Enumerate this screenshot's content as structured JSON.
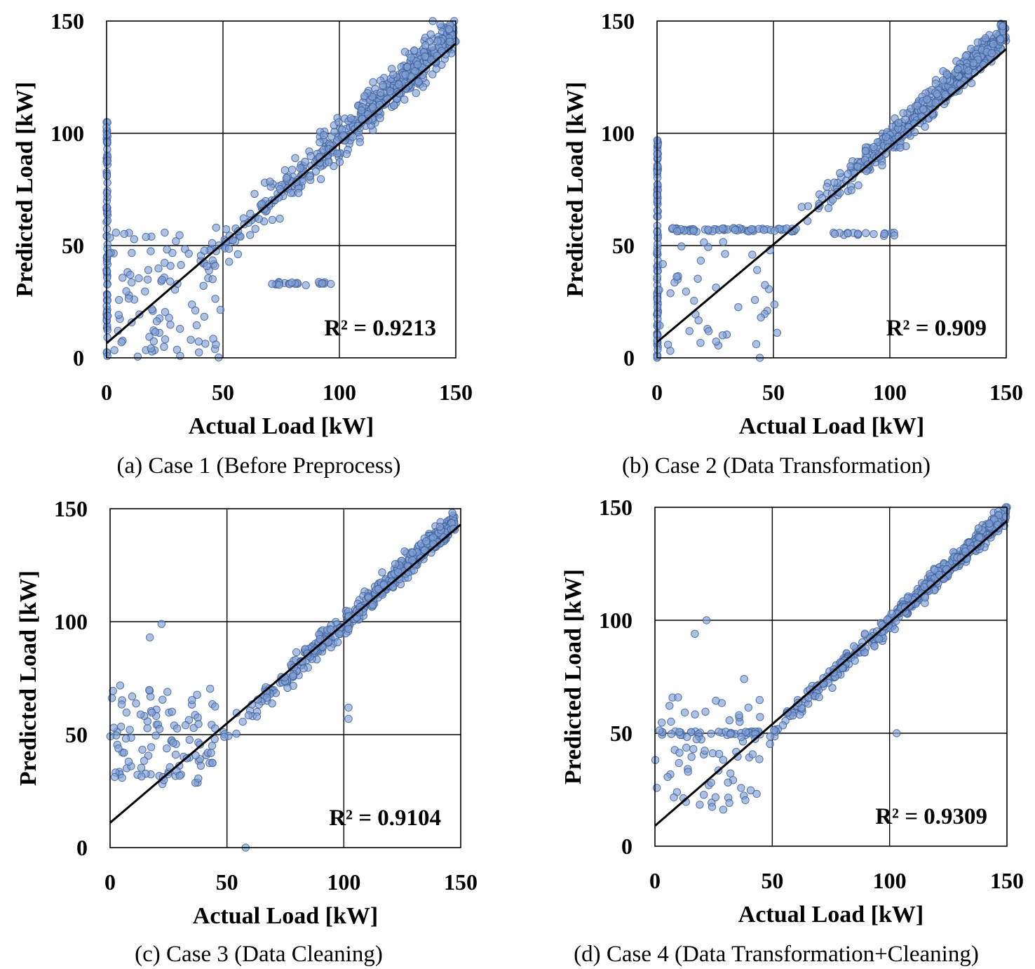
{
  "style": {
    "point_fill": "#7f9fd6",
    "point_stroke": "#3f5f98",
    "point_opacity": 0.65,
    "line_color": "#000000",
    "grid_color": "#000000"
  },
  "chart_data": [
    {
      "id": "a",
      "type": "scatter",
      "caption": "(a) Case 1 (Before Preprocess)",
      "xlabel": "Actual Load [kW]",
      "ylabel": "Predicted Load [kW]",
      "xlim": [
        0,
        150
      ],
      "ylim": [
        0,
        150
      ],
      "xticks": [
        "0",
        "50",
        "100",
        "150"
      ],
      "yticks": [
        "0",
        "50",
        "100",
        "150"
      ],
      "grid": true,
      "r2_label": "R² = 0.9213",
      "trendline": {
        "slope": 0.89,
        "intercept": 6.5
      },
      "clusters": {
        "main": {
          "xmin": 40,
          "xmax": 150,
          "slope": 0.95,
          "intercept": 3,
          "spread": 11,
          "n": 520
        },
        "zero_column": {
          "x": 0,
          "ymin": 0,
          "ymax": 107,
          "n": 80
        },
        "low_band": {
          "xmin": 0,
          "xmax": 50,
          "ymin": 0,
          "ymax": 58,
          "n": 100
        },
        "flat_line": {
          "xmin": 68,
          "xmax": 103,
          "y": 33,
          "n": 22
        }
      }
    },
    {
      "id": "b",
      "type": "scatter",
      "caption": "(b) Case 2 (Data Transformation)",
      "xlabel": "Actual Load [kW]",
      "ylabel": "Predicted Load [kW]",
      "xlim": [
        0,
        150
      ],
      "ylim": [
        0,
        150
      ],
      "xticks": [
        "0",
        "50",
        "100",
        "150"
      ],
      "yticks": [
        "0",
        "50",
        "100",
        "150"
      ],
      "grid": true,
      "r2_label": "R² = 0.909",
      "trendline": {
        "slope": 0.87,
        "intercept": 7
      },
      "clusters": {
        "main": {
          "xmin": 55,
          "xmax": 150,
          "slope": 0.95,
          "intercept": 2,
          "spread": 8,
          "n": 480
        },
        "zero_column": {
          "x": 0,
          "ymin": 0,
          "ymax": 100,
          "n": 90
        },
        "flat_line": {
          "xmin": 6,
          "xmax": 60,
          "y": 57,
          "n": 60
        },
        "flat_line_2": {
          "xmin": 75,
          "xmax": 102,
          "y": 55,
          "n": 18
        },
        "low_band": {
          "xmin": 0,
          "xmax": 52,
          "ymin": 0,
          "ymax": 52,
          "n": 45
        }
      }
    },
    {
      "id": "c",
      "type": "scatter",
      "caption": "(c) Case 3 (Data Cleaning)",
      "xlabel": "Actual Load [kW]",
      "ylabel": "Predicted Load [kW]",
      "xlim": [
        0,
        150
      ],
      "ylim": [
        0,
        150
      ],
      "xticks": [
        "0",
        "50",
        "100",
        "150"
      ],
      "yticks": [
        "0",
        "50",
        "100",
        "150"
      ],
      "grid": true,
      "r2_label": "R² = 0.9104",
      "trendline": {
        "slope": 0.88,
        "intercept": 11
      },
      "clusters": {
        "main": {
          "xmin": 40,
          "xmax": 148,
          "slope": 0.96,
          "intercept": 3,
          "spread": 6,
          "n": 460
        },
        "low_band": {
          "xmin": 0,
          "xmax": 45,
          "ymin": 28,
          "ymax": 72,
          "n": 110
        },
        "outliers": [
          [
            17,
            93
          ],
          [
            22,
            99
          ],
          [
            102,
            62
          ],
          [
            102,
            57
          ],
          [
            58,
            0
          ]
        ]
      }
    },
    {
      "id": "d",
      "type": "scatter",
      "caption": "(d) Case 4 (Data Transformation+Cleaning)",
      "xlabel": "Actual Load [kW]",
      "ylabel": "Predicted Load [kW]",
      "xlim": [
        0,
        150
      ],
      "ylim": [
        0,
        150
      ],
      "xticks": [
        "0",
        "50",
        "100",
        "150"
      ],
      "yticks": [
        "0",
        "50",
        "100",
        "150"
      ],
      "grid": true,
      "r2_label": "R² = 0.9309",
      "trendline": {
        "slope": 0.9,
        "intercept": 9
      },
      "clusters": {
        "main": {
          "xmin": 38,
          "xmax": 150,
          "slope": 0.97,
          "intercept": 2,
          "spread": 5,
          "n": 480
        },
        "flat_line": {
          "xmin": 3,
          "xmax": 45,
          "y": 50,
          "n": 40
        },
        "low_band": {
          "xmin": 0,
          "xmax": 45,
          "ymin": 15,
          "ymax": 66,
          "n": 70
        },
        "outliers": [
          [
            17,
            94
          ],
          [
            22,
            100
          ],
          [
            103,
            50
          ],
          [
            38,
            74
          ]
        ]
      }
    }
  ]
}
